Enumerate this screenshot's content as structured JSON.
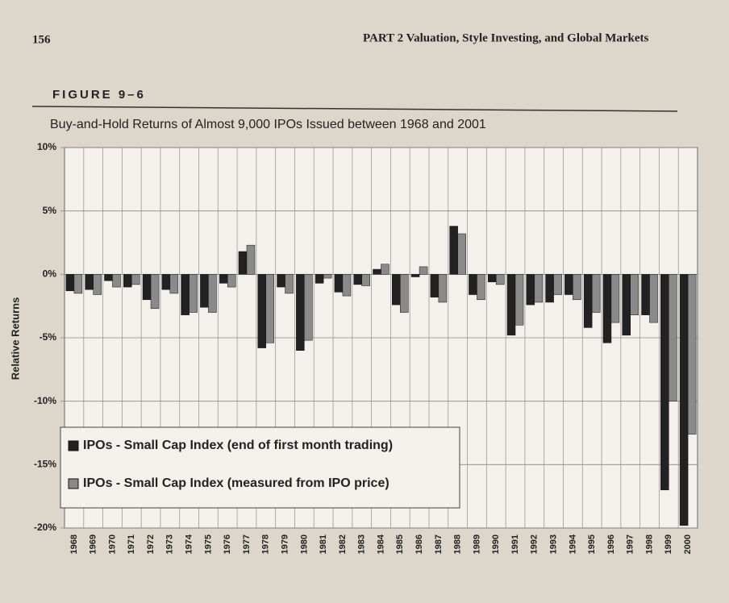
{
  "page": {
    "number": "156",
    "running_head": "PART 2  Valuation, Style Investing, and Global Markets",
    "figure_label": "FIGURE 9–6"
  },
  "chart_data": {
    "type": "bar",
    "title": "Buy-and-Hold Returns of Almost 9,000 IPOs Issued between 1968 and 2001",
    "ylabel": "Relative Returns",
    "categories": [
      "1968",
      "1969",
      "1970",
      "1971",
      "1972",
      "1973",
      "1974",
      "1975",
      "1976",
      "1977",
      "1978",
      "1979",
      "1980",
      "1981",
      "1982",
      "1983",
      "1984",
      "1985",
      "1986",
      "1987",
      "1988",
      "1989",
      "1990",
      "1991",
      "1992",
      "1993",
      "1994",
      "1995",
      "1996",
      "1997",
      "1998",
      "1999",
      "2000"
    ],
    "series": [
      {
        "name": "IPOs - Small Cap Index (end of first month trading)",
        "color": "#222222",
        "values": [
          -1.3,
          -1.2,
          -0.5,
          -1.0,
          -2.0,
          -1.2,
          -3.2,
          -2.6,
          -0.7,
          1.8,
          -5.8,
          -1.0,
          -6.0,
          -0.7,
          -1.4,
          -0.8,
          0.4,
          -2.4,
          -0.2,
          -1.8,
          3.8,
          -1.6,
          -0.6,
          -4.8,
          -2.4,
          -2.2,
          -1.6,
          -4.2,
          -5.4,
          -4.8,
          -3.2,
          -17.0,
          -19.8
        ]
      },
      {
        "name": "IPOs - Small Cap Index (measured from IPO price)",
        "color": "#8a8a8a",
        "values": [
          -1.5,
          -1.6,
          -1.0,
          -0.8,
          -2.7,
          -1.5,
          -3.0,
          -3.0,
          -1.0,
          2.3,
          -5.4,
          -1.5,
          -5.2,
          -0.3,
          -1.7,
          -0.9,
          0.8,
          -3.0,
          0.6,
          -2.2,
          3.2,
          -2.0,
          -0.8,
          -4.0,
          -2.2,
          -1.6,
          -2.0,
          -3.0,
          -3.8,
          -3.2,
          -3.8,
          -10.0,
          -12.6
        ]
      }
    ],
    "ylim": [
      -20,
      10
    ],
    "yticks": [
      {
        "value": -20,
        "label": "-20%"
      },
      {
        "value": -15,
        "label": "-15%"
      },
      {
        "value": -10,
        "label": "-10%"
      },
      {
        "value": -5,
        "label": "-5%"
      },
      {
        "value": 0,
        "label": "0%"
      },
      {
        "value": 5,
        "label": "5%"
      },
      {
        "value": 10,
        "label": "10%"
      }
    ],
    "grid": true
  }
}
